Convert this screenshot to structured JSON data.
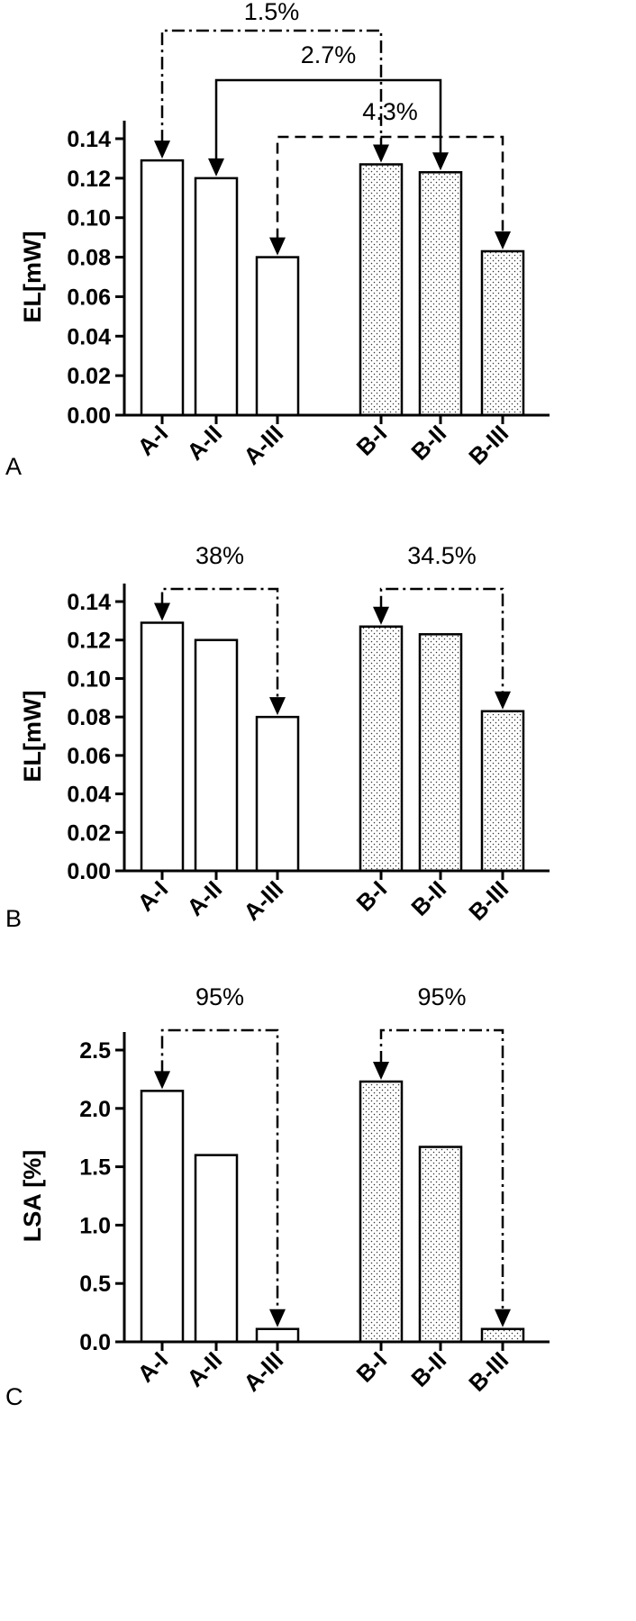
{
  "chart_data": [
    {
      "panel": "A",
      "type": "bar",
      "ylabel": "EL[mW]",
      "ylim": [
        0,
        0.14
      ],
      "yticks": [
        "0.00",
        "0.02",
        "0.04",
        "0.06",
        "0.08",
        "0.10",
        "0.12",
        "0.14"
      ],
      "categories": [
        "A-I",
        "A-II",
        "A-III",
        "B-I",
        "B-II",
        "B-III"
      ],
      "values": [
        0.129,
        0.12,
        0.08,
        0.127,
        0.123,
        0.083
      ],
      "fills": [
        "plain",
        "plain",
        "plain",
        "dotted",
        "dotted",
        "dotted"
      ],
      "annotations": [
        {
          "label": "1.5%",
          "from": 0,
          "to": 3,
          "style": "dash-dot"
        },
        {
          "label": "2.7%",
          "from": 1,
          "to": 4,
          "style": "solid"
        },
        {
          "label": "4.3%",
          "from": 2,
          "to": 5,
          "style": "dashed"
        }
      ]
    },
    {
      "panel": "B",
      "type": "bar",
      "ylabel": "EL[mW]",
      "ylim": [
        0,
        0.14
      ],
      "yticks": [
        "0.00",
        "0.02",
        "0.04",
        "0.06",
        "0.08",
        "0.10",
        "0.12",
        "0.14"
      ],
      "categories": [
        "A-I",
        "A-II",
        "A-III",
        "B-I",
        "B-II",
        "B-III"
      ],
      "values": [
        0.129,
        0.12,
        0.08,
        0.127,
        0.123,
        0.083
      ],
      "fills": [
        "plain",
        "plain",
        "plain",
        "dotted",
        "dotted",
        "dotted"
      ],
      "annotations": [
        {
          "label": "38%",
          "from": 0,
          "to": 2,
          "style": "dash-dot"
        },
        {
          "label": "34.5%",
          "from": 3,
          "to": 5,
          "style": "dash-dot"
        }
      ]
    },
    {
      "panel": "C",
      "type": "bar",
      "ylabel": "LSA [%]",
      "ylim": [
        0,
        2.5
      ],
      "yticks": [
        "0.0",
        "0.5",
        "1.0",
        "1.5",
        "2.0",
        "2.5"
      ],
      "categories": [
        "A-I",
        "A-II",
        "A-III",
        "B-I",
        "B-II",
        "B-III"
      ],
      "values": [
        2.15,
        1.6,
        0.11,
        2.23,
        1.67,
        0.11
      ],
      "fills": [
        "plain",
        "plain",
        "plain",
        "dotted",
        "dotted",
        "dotted"
      ],
      "annotations": [
        {
          "label": "95%",
          "from": 0,
          "to": 2,
          "style": "dash-dot"
        },
        {
          "label": "95%",
          "from": 3,
          "to": 5,
          "style": "dash-dot"
        }
      ]
    }
  ]
}
